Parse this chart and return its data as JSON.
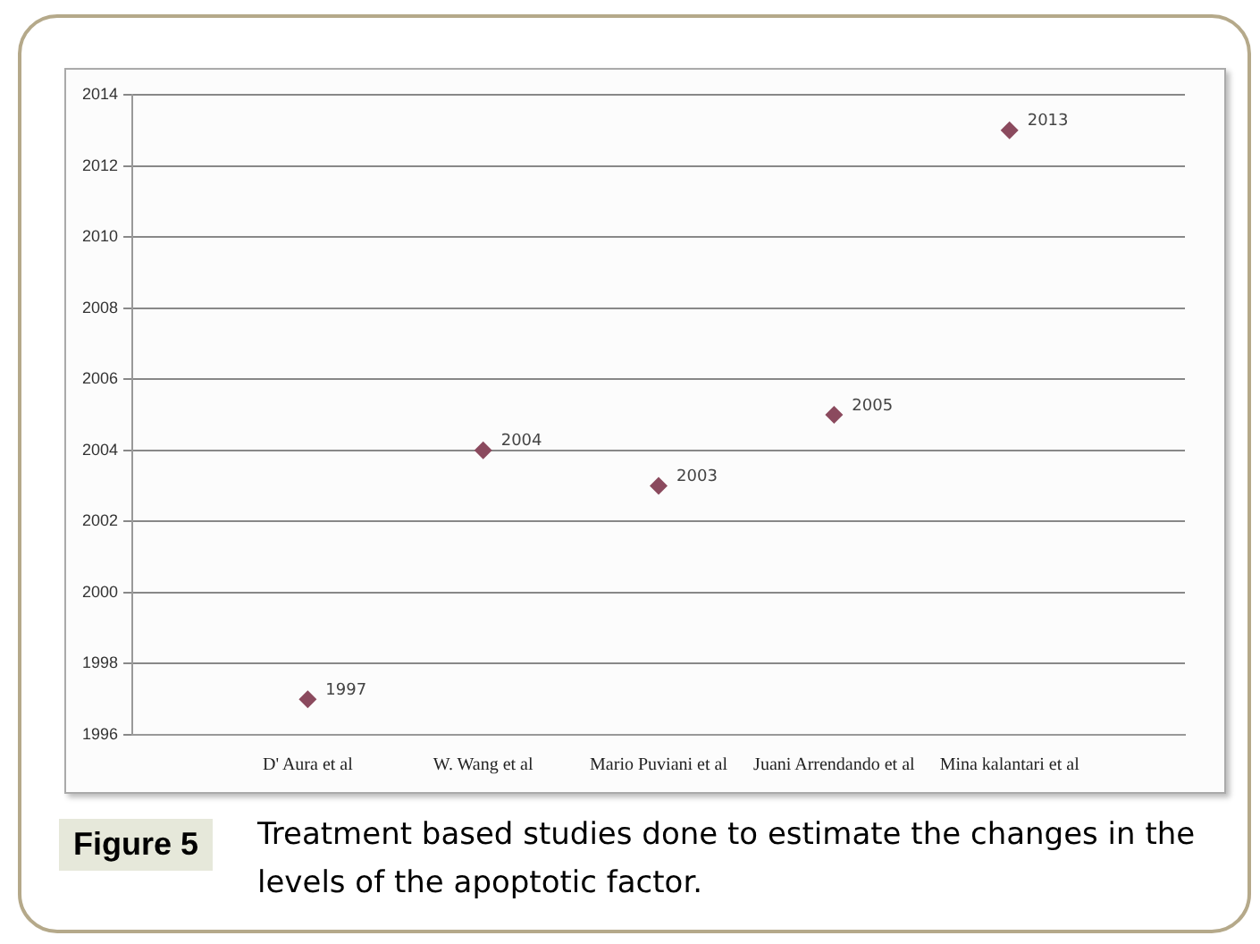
{
  "chart_data": {
    "type": "scatter",
    "categories": [
      null,
      "D' Aura et al",
      "W. Wang et al",
      "Mario Puviani et al",
      "Juani Arrendando et al",
      "Mina kalantari et al",
      null
    ],
    "series": [
      {
        "color": "#8b4a5e",
        "values": [
          null,
          1997,
          2004,
          2003,
          2005,
          2013,
          null
        ]
      }
    ],
    "ylim": [
      1996,
      2014
    ],
    "yticks": [
      1996,
      1998,
      2000,
      2002,
      2004,
      2006,
      2008,
      2010,
      2012,
      2014
    ],
    "grid": "y",
    "legend": false,
    "marker": "diamond",
    "data_labels": true,
    "annotations": [
      "Figure 5",
      "Treatment based studies done to estimate the changes in the levels of the apoptotic factor."
    ]
  }
}
